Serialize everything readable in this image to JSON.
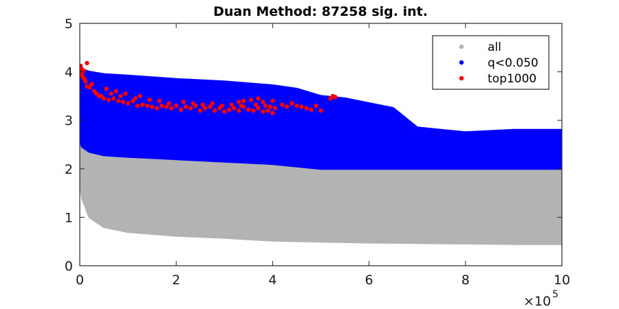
{
  "chart_data": {
    "type": "scatter",
    "title": "Duan Method: 87258 sig. int.",
    "xlabel": "",
    "ylabel": "",
    "xlim": [
      0,
      1000000
    ],
    "ylim": [
      0,
      5
    ],
    "x_ticks": [
      0,
      200000,
      400000,
      600000,
      800000,
      1000000
    ],
    "x_tick_labels": [
      "0",
      "2",
      "4",
      "6",
      "8",
      "10"
    ],
    "x_exponent_label": "×10",
    "x_exponent": "5",
    "y_ticks": [
      0,
      1,
      2,
      3,
      4,
      5
    ],
    "y_tick_labels": [
      "0",
      "1",
      "2",
      "3",
      "4",
      "5"
    ],
    "grid": false,
    "legend_position": "top-right",
    "series": [
      {
        "name": "all",
        "color": "#b3b3b3",
        "band": {
          "x": [
            0,
            5000,
            20000,
            50000,
            100000,
            200000,
            300000,
            400000,
            500000,
            600000,
            700000,
            800000,
            900000,
            1000000
          ],
          "lower": [
            1.8,
            1.4,
            1.0,
            0.8,
            0.7,
            0.62,
            0.58,
            0.52,
            0.5,
            0.48,
            0.47,
            0.46,
            0.45,
            0.45
          ],
          "upper": [
            3.9,
            3.4,
            2.95,
            2.7,
            2.55,
            2.35,
            2.3,
            2.2,
            2.2,
            2.0,
            2.0,
            2.0,
            2.0,
            2.0
          ]
        }
      },
      {
        "name": "q<0.050",
        "color": "#0000ff",
        "band": {
          "x": [
            0,
            5000,
            20000,
            50000,
            100000,
            200000,
            300000,
            400000,
            450000,
            500000,
            550000,
            600000,
            650000,
            700000,
            800000,
            900000,
            1000000
          ],
          "lower": [
            2.6,
            2.45,
            2.35,
            2.28,
            2.25,
            2.2,
            2.15,
            2.1,
            2.05,
            2.0,
            2.0,
            2.0,
            2.0,
            2.0,
            2.0,
            2.0,
            2.0
          ],
          "upper": [
            4.15,
            4.05,
            4.0,
            3.95,
            3.92,
            3.85,
            3.8,
            3.72,
            3.65,
            3.5,
            3.45,
            3.35,
            3.25,
            2.85,
            2.75,
            2.8,
            2.8
          ]
        }
      },
      {
        "name": "top1000",
        "color": "#ff0000",
        "points": [
          [
            2000,
            4.12
          ],
          [
            5000,
            4.05
          ],
          [
            8000,
            4.02
          ],
          [
            15000,
            4.18
          ],
          [
            3000,
            3.95
          ],
          [
            6000,
            3.9
          ],
          [
            10000,
            3.85
          ],
          [
            12000,
            3.8
          ],
          [
            15000,
            3.7
          ],
          [
            20000,
            3.68
          ],
          [
            25000,
            3.75
          ],
          [
            30000,
            3.6
          ],
          [
            35000,
            3.55
          ],
          [
            40000,
            3.5
          ],
          [
            45000,
            3.5
          ],
          [
            50000,
            3.45
          ],
          [
            60000,
            3.42
          ],
          [
            70000,
            3.45
          ],
          [
            80000,
            3.4
          ],
          [
            90000,
            3.38
          ],
          [
            100000,
            3.35
          ],
          [
            110000,
            3.4
          ],
          [
            120000,
            3.3
          ],
          [
            130000,
            3.32
          ],
          [
            140000,
            3.3
          ],
          [
            150000,
            3.28
          ],
          [
            160000,
            3.25
          ],
          [
            170000,
            3.3
          ],
          [
            180000,
            3.28
          ],
          [
            190000,
            3.25
          ],
          [
            200000,
            3.3
          ],
          [
            210000,
            3.22
          ],
          [
            220000,
            3.28
          ],
          [
            230000,
            3.25
          ],
          [
            240000,
            3.3
          ],
          [
            250000,
            3.2
          ],
          [
            260000,
            3.25
          ],
          [
            270000,
            3.28
          ],
          [
            280000,
            3.2
          ],
          [
            290000,
            3.25
          ],
          [
            300000,
            3.18
          ],
          [
            310000,
            3.22
          ],
          [
            320000,
            3.25
          ],
          [
            330000,
            3.2
          ],
          [
            340000,
            3.28
          ],
          [
            350000,
            3.22
          ],
          [
            360000,
            3.2
          ],
          [
            370000,
            3.25
          ],
          [
            380000,
            3.18
          ],
          [
            390000,
            3.2
          ],
          [
            400000,
            3.15
          ],
          [
            330000,
            3.38
          ],
          [
            340000,
            3.4
          ],
          [
            355000,
            3.42
          ],
          [
            370000,
            3.45
          ],
          [
            380000,
            3.38
          ],
          [
            400000,
            3.4
          ],
          [
            420000,
            3.32
          ],
          [
            430000,
            3.28
          ],
          [
            440000,
            3.35
          ],
          [
            450000,
            3.3
          ],
          [
            460000,
            3.28
          ],
          [
            470000,
            3.25
          ],
          [
            480000,
            3.22
          ],
          [
            490000,
            3.3
          ],
          [
            500000,
            3.2
          ],
          [
            520000,
            3.45
          ],
          [
            525000,
            3.5
          ],
          [
            530000,
            3.48
          ],
          [
            75000,
            3.6
          ],
          [
            95000,
            3.55
          ],
          [
            125000,
            3.5
          ],
          [
            55000,
            3.65
          ],
          [
            65000,
            3.55
          ],
          [
            85000,
            3.5
          ],
          [
            115000,
            3.45
          ],
          [
            145000,
            3.42
          ],
          [
            165000,
            3.4
          ],
          [
            185000,
            3.35
          ],
          [
            215000,
            3.38
          ],
          [
            235000,
            3.35
          ],
          [
            255000,
            3.32
          ],
          [
            275000,
            3.35
          ],
          [
            295000,
            3.3
          ],
          [
            315000,
            3.32
          ],
          [
            335000,
            3.3
          ],
          [
            365000,
            3.32
          ],
          [
            385000,
            3.3
          ],
          [
            395000,
            3.28
          ],
          [
            405000,
            3.25
          ]
        ]
      }
    ]
  }
}
